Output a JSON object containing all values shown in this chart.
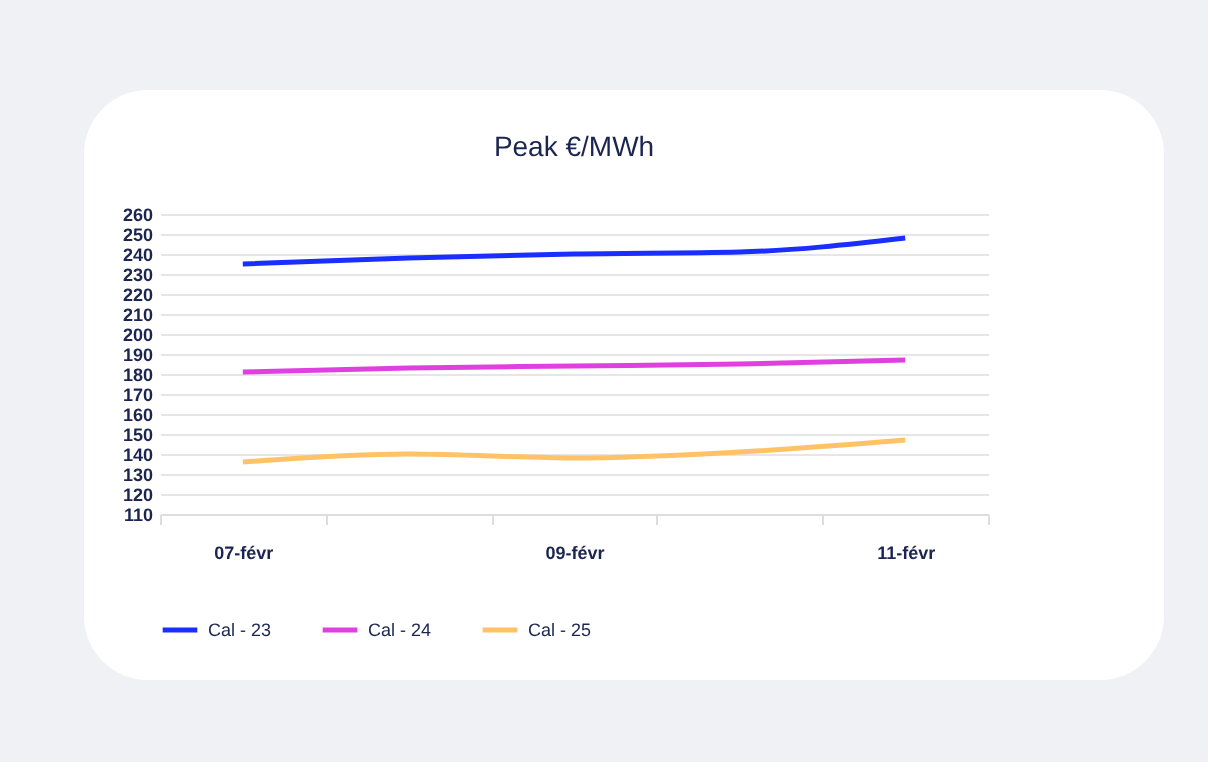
{
  "chart_data": {
    "type": "line",
    "title": "Peak €/MWh",
    "categories": [
      "07-févr",
      null,
      "09-févr",
      null,
      "11-févr"
    ],
    "series": [
      {
        "name": "Cal - 23",
        "color": "#1a2eff",
        "values": [
          235,
          238,
          240,
          241,
          248
        ]
      },
      {
        "name": "Cal - 24",
        "color": "#e040e0",
        "values": [
          181,
          183,
          184,
          185,
          187
        ]
      },
      {
        "name": "Cal - 25",
        "color": "#ffc266",
        "values": [
          136,
          140,
          138,
          141,
          147
        ]
      }
    ],
    "ylim": [
      110,
      260
    ],
    "yticks": [
      110,
      120,
      130,
      140,
      150,
      160,
      170,
      180,
      190,
      200,
      210,
      220,
      230,
      240,
      250,
      260
    ],
    "grid": "y",
    "legend": "bottom",
    "marker": "none",
    "line_style": "solid"
  }
}
